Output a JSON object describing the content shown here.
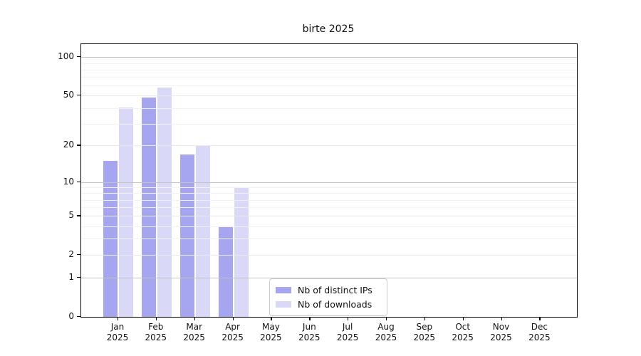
{
  "chart_data": {
    "type": "bar",
    "title": "birte 2025",
    "x_categories": [
      "Jan",
      "Feb",
      "Mar",
      "Apr",
      "May",
      "Jun",
      "Jul",
      "Aug",
      "Sep",
      "Oct",
      "Nov",
      "Dec"
    ],
    "x_year": "2025",
    "series": [
      {
        "name": "Nb of distinct IPs",
        "color": "#a6a6f0",
        "values": [
          15,
          48,
          17,
          4,
          0,
          0,
          0,
          0,
          0,
          0,
          0,
          0
        ]
      },
      {
        "name": "Nb of downloads",
        "color": "#d9d9f7",
        "values": [
          40,
          58,
          20,
          9,
          0,
          0,
          0,
          0,
          0,
          0,
          0,
          0
        ]
      }
    ],
    "yscale": "log1p",
    "ylim": [
      0,
      126
    ],
    "y_ticks": [
      0,
      1,
      2,
      5,
      10,
      20,
      50,
      100
    ],
    "y_major_gridlines": [
      1,
      10,
      100
    ],
    "y_mid_gridlines": [
      2,
      5,
      20,
      50
    ],
    "y_minor_gridlines": [
      3,
      4,
      6,
      7,
      8,
      9,
      30,
      40,
      60,
      70,
      80,
      90
    ],
    "grid": true,
    "legend_position": "lower-center"
  },
  "colors": {
    "background": "#ffffff",
    "spine": "#000000",
    "text": "#111111",
    "gridline_major": "#c4c4c4",
    "gridline_mid": "#e9e9e9",
    "gridline_minor": "#f2f2f2",
    "legend_border": "#cccccc"
  }
}
